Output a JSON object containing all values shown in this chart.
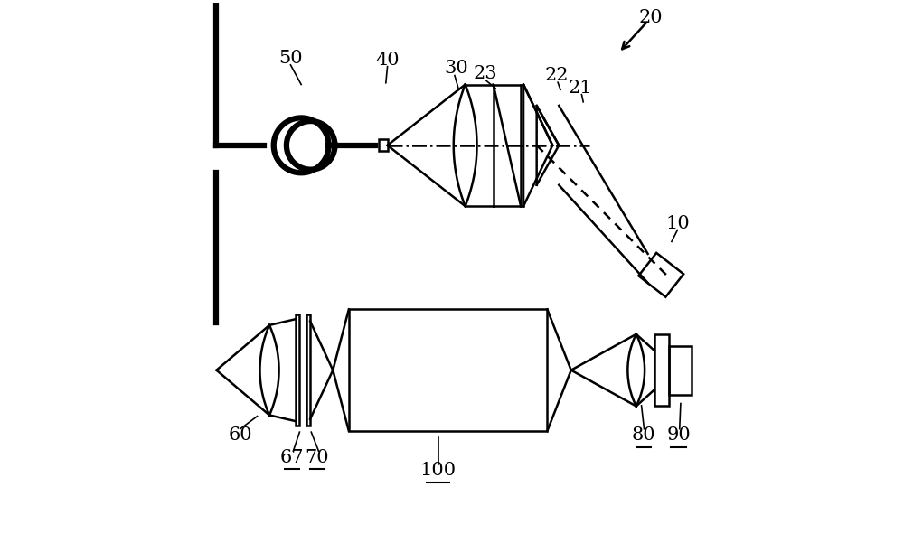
{
  "bg_color": "#ffffff",
  "line_color": "#000000",
  "lw": 1.8,
  "lw_thick": 4.5,
  "figsize": [
    10.0,
    5.91
  ],
  "dpi": 100
}
